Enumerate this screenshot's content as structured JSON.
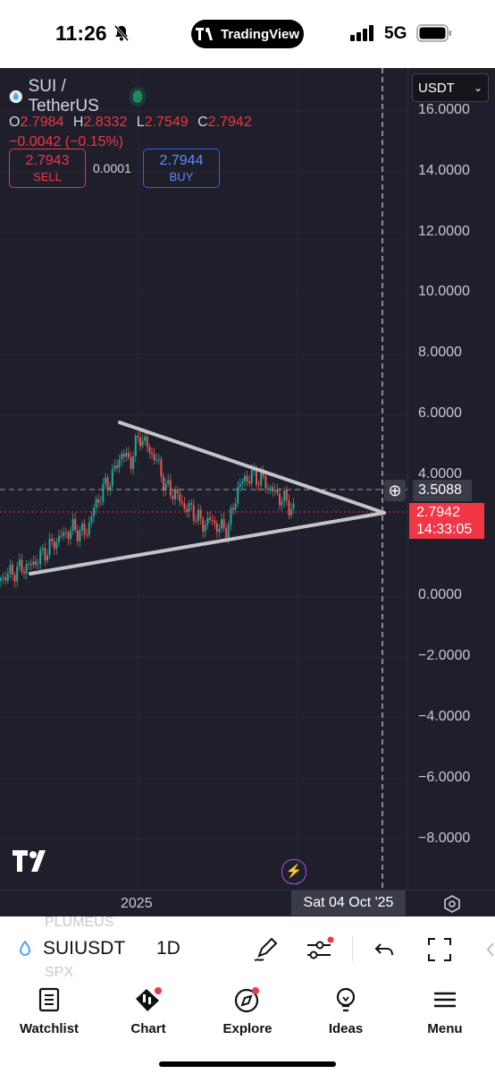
{
  "status_bar": {
    "time": "11:26",
    "app_pill": "TradingView",
    "network": "5G"
  },
  "chart": {
    "symbol_title": "SUI / TetherUS",
    "ohlc": {
      "o_label": "O",
      "o": "2.7984",
      "h_label": "H",
      "h": "2.8332",
      "l_label": "L",
      "l": "2.7549",
      "c_label": "C",
      "c": "2.7942"
    },
    "change": "−0.0042 (−0.15%)",
    "sell": {
      "price": "2.7943",
      "label": "SELL"
    },
    "spread": "0.0001",
    "buy": {
      "price": "2.7944",
      "label": "BUY"
    },
    "currency_select": "USDT",
    "y_axis": [
      "16.0000",
      "14.0000",
      "12.0000",
      "10.0000",
      "8.0000",
      "6.0000",
      "4.0000",
      "2.0000",
      "0.0000",
      "−2.0000",
      "−4.0000",
      "−6.0000",
      "−8.0000"
    ],
    "crosshair_price": "3.5088",
    "last_price": "2.7942",
    "countdown": "14:33:05",
    "x_axis_label": "2025",
    "crosshair_date": "Sat 04 Oct '25",
    "colors": {
      "bg": "#1e1f2a",
      "up": "#26a69a",
      "down": "#ef5350",
      "trendline": "#c4c4c8"
    }
  },
  "toolbar": {
    "ghost_top": "PLUMEUS",
    "ghost_bottom": "SPX",
    "symbol": "SUIUSDT",
    "interval": "1D",
    "icons": [
      "draw-icon",
      "indicators-icon",
      "undo-icon",
      "fullscreen-icon"
    ]
  },
  "nav": [
    {
      "label": "Watchlist",
      "icon": "watchlist-icon"
    },
    {
      "label": "Chart",
      "icon": "chart-icon"
    },
    {
      "label": "Explore",
      "icon": "explore-icon"
    },
    {
      "label": "Ideas",
      "icon": "ideas-icon"
    },
    {
      "label": "Menu",
      "icon": "menu-icon"
    }
  ]
}
